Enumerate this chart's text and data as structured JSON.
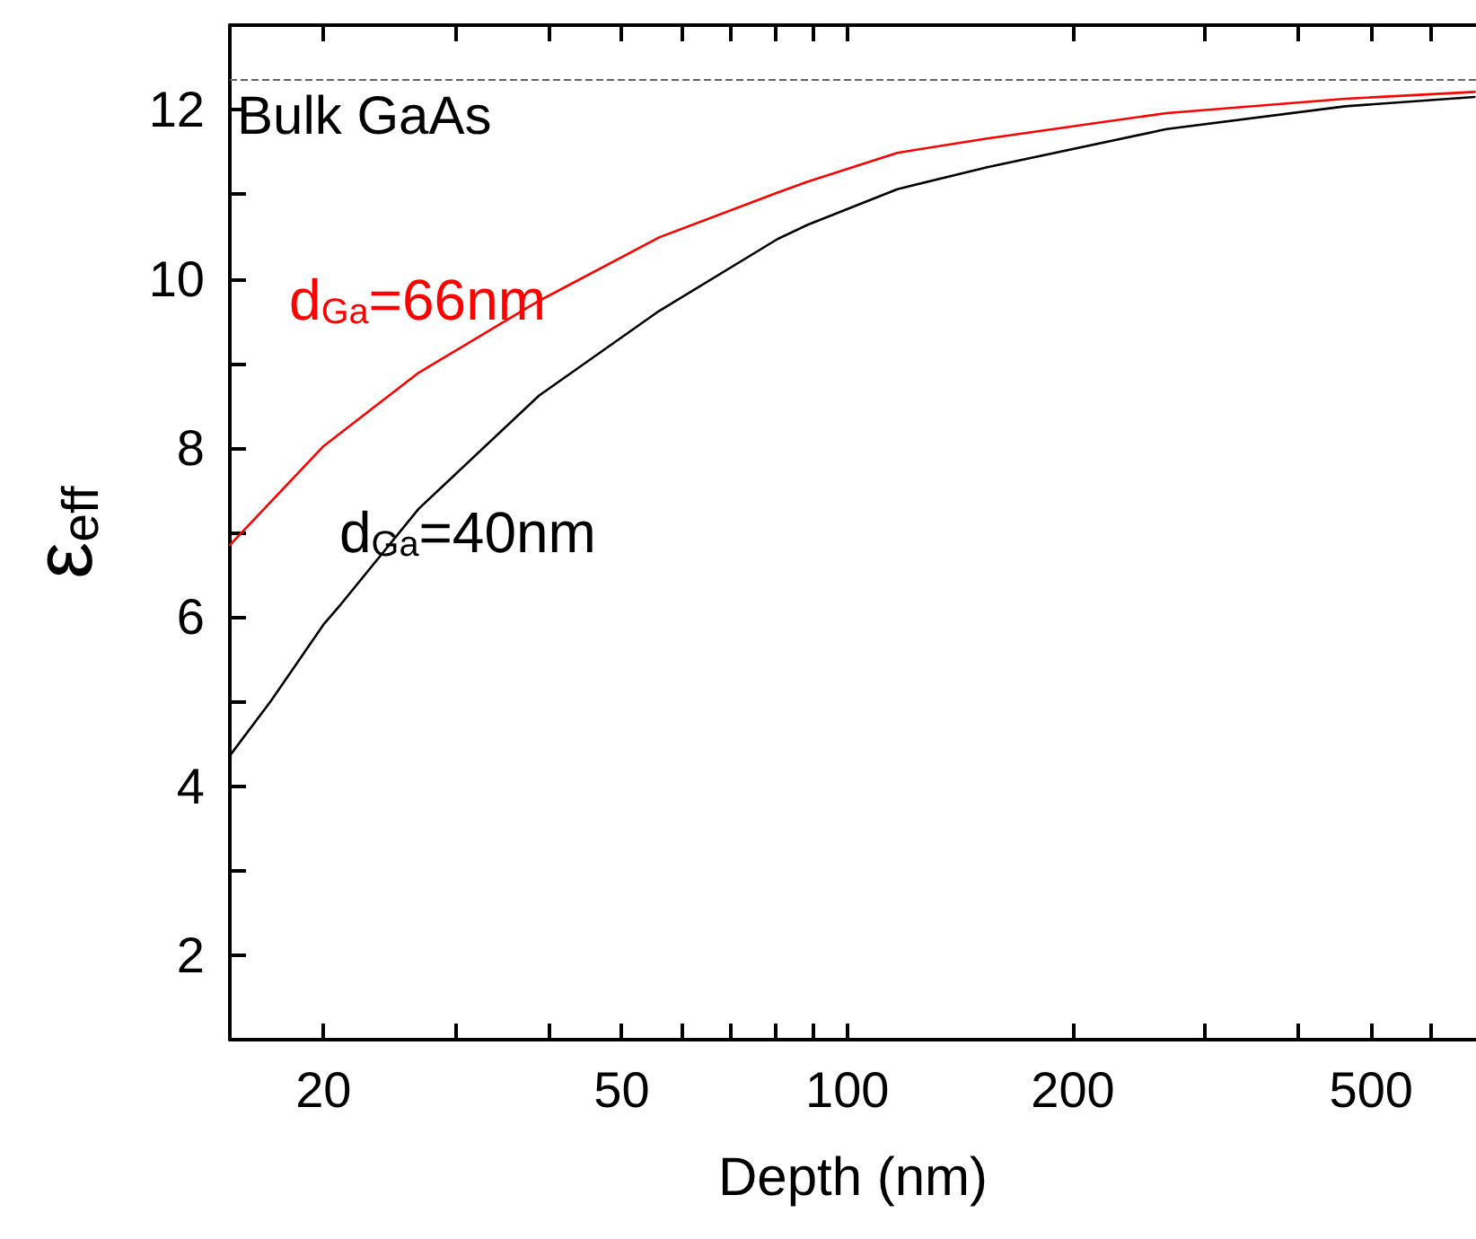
{
  "chart_data": {
    "type": "line",
    "xlabel": "Depth (nm)",
    "ylabel": "ε$_{eff}$",
    "log": "x",
    "xlim": [
      15,
      690
    ],
    "ylim": [
      1,
      13
    ],
    "xticks": [
      20,
      {
        "value": 30,
        "label": null
      },
      {
        "value": 40,
        "label": null
      },
      50,
      {
        "value": 60,
        "label": null
      },
      {
        "value": 70,
        "label": null
      },
      {
        "value": 80,
        "label": null
      },
      {
        "value": 90,
        "label": null
      },
      100,
      200,
      {
        "value": 300,
        "label": null
      },
      {
        "value": 400,
        "label": null
      },
      500,
      {
        "value": 600,
        "label": null
      }
    ],
    "yticks": [
      2,
      {
        "value": 3,
        "label": null
      },
      4,
      {
        "value": 5,
        "label": null
      },
      6,
      {
        "value": 7,
        "label": null
      },
      8,
      {
        "value": 9,
        "label": null
      },
      10,
      {
        "value": 11,
        "label": null
      },
      12
    ],
    "grid": false,
    "legend": false,
    "marker": "none",
    "line_style": "solid",
    "ref_lines": [
      {
        "axis": "y",
        "value": 12.36,
        "label": "Bulk GaAs",
        "color": "#666666",
        "line_style": "dashed"
      }
    ],
    "series": [
      {
        "name": "d$_{Ga}$=66nm",
        "color": "#ff0000",
        "x": [
          15,
          20,
          26.8,
          38.8,
          56.1,
          80.7,
          88.6,
          116.6,
          153.7,
          266.7,
          462,
          687
        ],
        "values": [
          6.85,
          8.02,
          8.89,
          9.74,
          10.49,
          11.02,
          11.15,
          11.49,
          11.66,
          11.96,
          12.13,
          12.21
        ]
      },
      {
        "name": "d$_{Ga}$=40nm",
        "color": "#000000",
        "x": [
          15,
          17,
          20,
          21.1,
          26.8,
          38.8,
          56.1,
          80.7,
          88.6,
          116.6,
          153.7,
          266.7,
          462,
          687
        ],
        "values": [
          4.36,
          5.0,
          5.91,
          6.15,
          7.28,
          8.62,
          9.62,
          10.47,
          10.64,
          11.06,
          11.32,
          11.77,
          12.04,
          12.15
        ]
      }
    ]
  }
}
